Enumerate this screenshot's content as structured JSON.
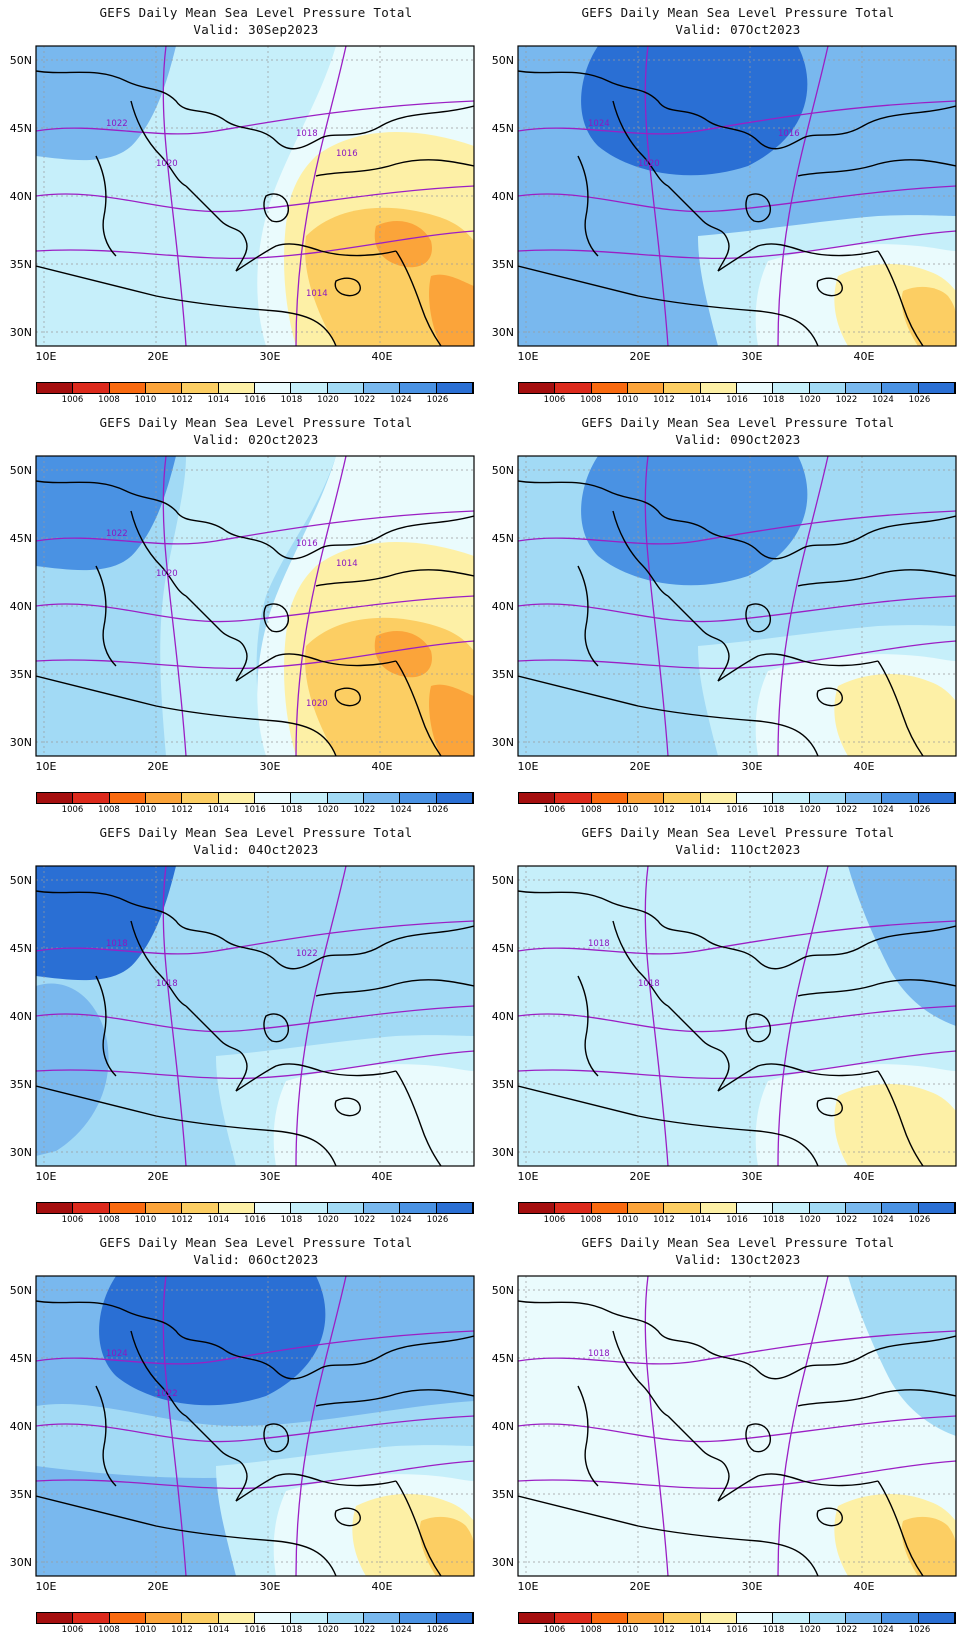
{
  "figure_title": "GEFS Daily Mean Sea Level Pressure Total",
  "colorbar": {
    "levels": [
      "1006",
      "1008",
      "1010",
      "1012",
      "1014",
      "1016",
      "1018",
      "1020",
      "1022",
      "1024",
      "1026"
    ],
    "colors": [
      "#a50f0f",
      "#dc2a1c",
      "#f96a10",
      "#fba43a",
      "#fcce63",
      "#fdf0a6",
      "#eafbfd",
      "#c6effa",
      "#a2daf5",
      "#79b8ee",
      "#4a92e3",
      "#2a6fd4"
    ]
  },
  "axes": {
    "lon_labels": [
      "10E",
      "20E",
      "30E",
      "40E"
    ],
    "lat_labels": [
      "50N",
      "45N",
      "40N",
      "35N",
      "30N"
    ]
  },
  "panels": [
    {
      "valid": "Valid: 30Sep2023",
      "background": "#c6effa",
      "regions": [
        {
          "level": "1022",
          "shape": "nw"
        },
        {
          "level": "1018",
          "shape": "center"
        },
        {
          "level": "1016",
          "shape": "east-high"
        },
        {
          "level": "1014",
          "shape": "east-mid"
        },
        {
          "level": "1012",
          "shape": "east-low"
        },
        {
          "level": "1010",
          "shape": "se-spot"
        }
      ],
      "iso_labels": [
        "1022",
        "1020",
        "1018",
        "1016",
        "1014"
      ]
    },
    {
      "valid": "Valid: 07Oct2023",
      "background": "#79b8ee",
      "regions": [
        {
          "level": "1026",
          "shape": "north-core"
        },
        {
          "level": "1022",
          "shape": "south-band"
        },
        {
          "level": "1018",
          "shape": "south-strip"
        },
        {
          "level": "1016",
          "shape": "se-high"
        },
        {
          "level": "1014",
          "shape": "se-mid"
        },
        {
          "level": "1012",
          "shape": "se-low"
        }
      ],
      "iso_labels": [
        "1024",
        "1020",
        "1016"
      ]
    },
    {
      "valid": "Valid: 02Oct2023",
      "background": "#a2daf5",
      "regions": [
        {
          "level": "1024",
          "shape": "nw"
        },
        {
          "level": "1018",
          "shape": "center"
        },
        {
          "level": "1016",
          "shape": "east-high"
        },
        {
          "level": "1014",
          "shape": "east-mid"
        },
        {
          "level": "1012",
          "shape": "east-low"
        },
        {
          "level": "1010",
          "shape": "se-spot"
        }
      ],
      "iso_labels": [
        "1022",
        "1020",
        "1016",
        "1014",
        "1020"
      ]
    },
    {
      "valid": "Valid: 09Oct2023",
      "background": "#a2daf5",
      "regions": [
        {
          "level": "1024",
          "shape": "north-core"
        },
        {
          "level": "1020",
          "shape": "south-band"
        },
        {
          "level": "1018",
          "shape": "south-strip"
        },
        {
          "level": "1016",
          "shape": "se-high"
        },
        {
          "level": "1014",
          "shape": "se-mid"
        }
      ],
      "iso_labels": []
    },
    {
      "valid": "Valid: 04Oct2023",
      "background": "#a2daf5",
      "regions": [
        {
          "level": "1026",
          "shape": "nw"
        },
        {
          "level": "1022",
          "shape": "west"
        },
        {
          "level": "1018",
          "shape": "south-strip"
        },
        {
          "level": "1016",
          "shape": "se-high"
        }
      ],
      "iso_labels": [
        "1018",
        "1018",
        "1022"
      ]
    },
    {
      "valid": "Valid: 11Oct2023",
      "background": "#c6effa",
      "regions": [
        {
          "level": "1018",
          "shape": "west"
        },
        {
          "level": "1022",
          "shape": "ne-strip"
        },
        {
          "level": "1016",
          "shape": "se-high"
        },
        {
          "level": "1014",
          "shape": "se-mid"
        }
      ],
      "iso_labels": [
        "1018",
        "1018"
      ]
    },
    {
      "valid": "Valid: 06Oct2023",
      "background": "#79b8ee",
      "regions": [
        {
          "level": "1026",
          "shape": "north-core"
        },
        {
          "level": "1020",
          "shape": "south-band"
        },
        {
          "level": "1018",
          "shape": "south-strip"
        },
        {
          "level": "1016",
          "shape": "se-high"
        },
        {
          "level": "1014",
          "shape": "se-mid"
        },
        {
          "level": "1012",
          "shape": "se-low"
        }
      ],
      "iso_labels": [
        "1024",
        "1022"
      ]
    },
    {
      "valid": "Valid: 13Oct2023",
      "background": "#eafbfd",
      "regions": [
        {
          "level": "1016",
          "shape": "west"
        },
        {
          "level": "1020",
          "shape": "ne-strip"
        },
        {
          "level": "1016",
          "shape": "se-high"
        },
        {
          "level": "1014",
          "shape": "se-mid"
        },
        {
          "level": "1012",
          "shape": "se-low"
        }
      ],
      "iso_labels": [
        "1018"
      ]
    }
  ]
}
